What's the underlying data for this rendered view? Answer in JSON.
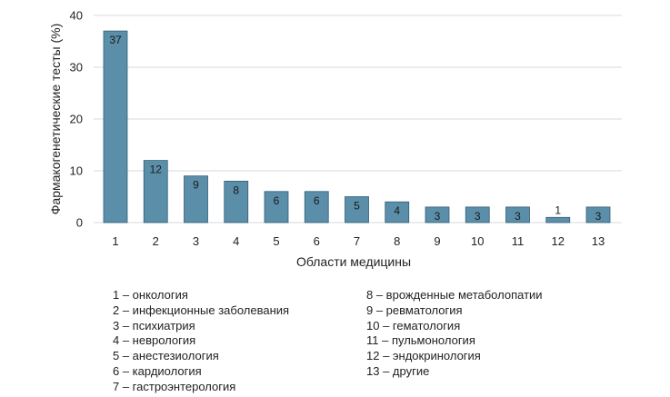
{
  "chart_data": {
    "type": "bar",
    "categories": [
      "1",
      "2",
      "3",
      "4",
      "5",
      "6",
      "7",
      "8",
      "9",
      "10",
      "11",
      "12",
      "13"
    ],
    "values": [
      37,
      12,
      9,
      8,
      6,
      6,
      5,
      4,
      3,
      3,
      3,
      1,
      3
    ],
    "data_labels": [
      "37",
      "12",
      "9",
      "8",
      "6",
      "6",
      "5",
      "4",
      "3",
      "3",
      "3",
      "1",
      "3"
    ],
    "ylabel": "Фармакогенетические тесты (%)",
    "xlabel": "Области медицины",
    "ylim": [
      0,
      40
    ],
    "yticks": [
      "0",
      "10",
      "20",
      "30",
      "40"
    ],
    "grid": true,
    "bar_color": "#5b8ea9",
    "bar_edge_color": "#2f5f78",
    "grid_color": "#d9d9d9"
  },
  "legend": {
    "left": [
      "1 – онкология",
      "2 – инфекционные заболевания",
      "3 – психиатрия",
      "4 – неврология",
      "5 – анестезиология",
      "6 – кардиология",
      "7 – гастроэнтерология"
    ],
    "right": [
      "8 – врожденные метаболопатии",
      "9 – ревматология",
      "10 – гематология",
      "11 – пульмонология",
      "12 – эндокринология",
      "13 – другие"
    ]
  }
}
